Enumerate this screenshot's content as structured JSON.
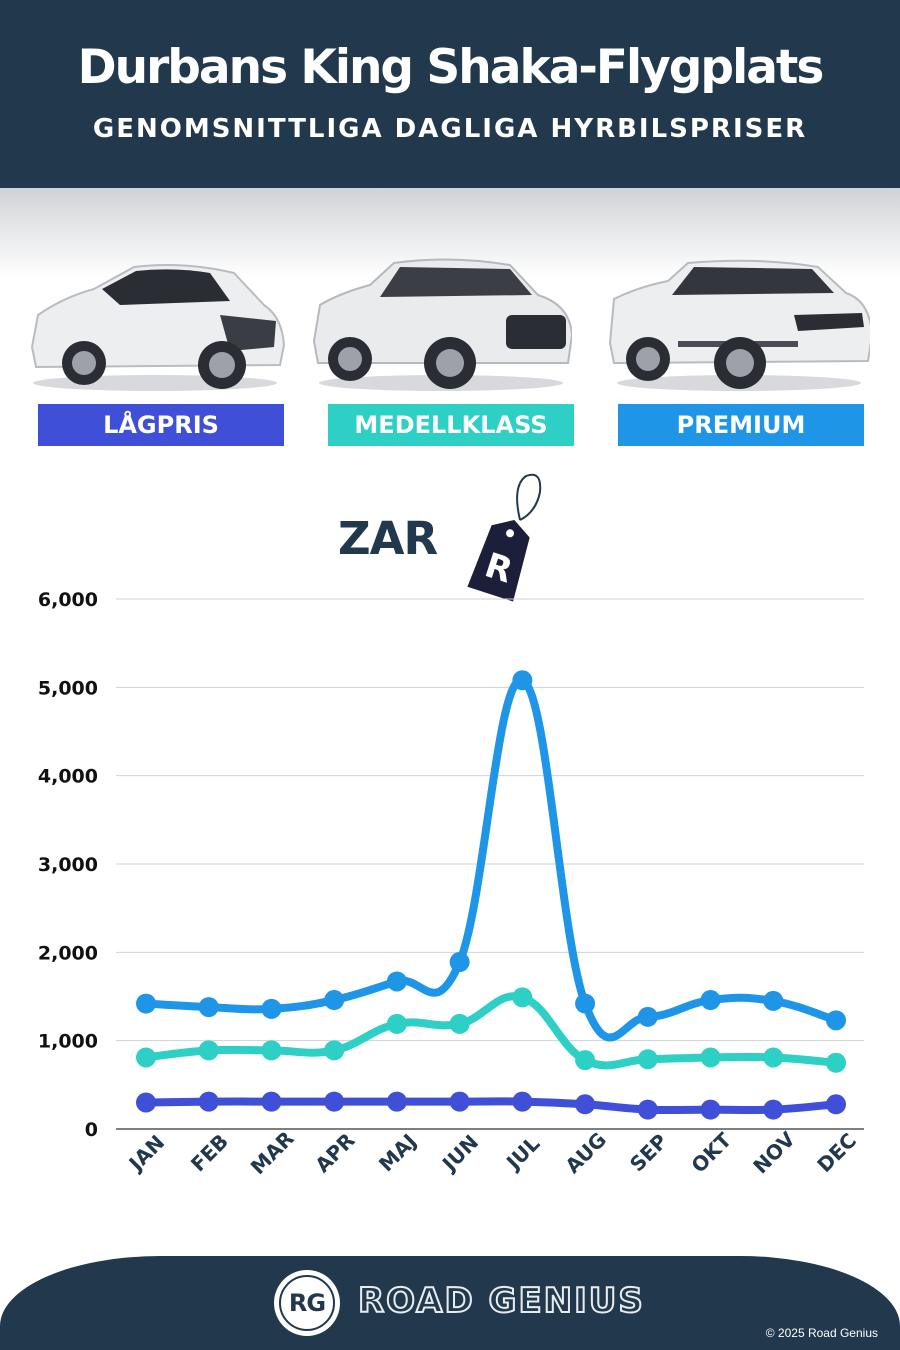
{
  "header": {
    "title": "Durbans King Shaka-Flygplats",
    "subtitle": "GENOMSNITTLIGA DAGLIGA HYRBILSPRISER"
  },
  "categories_badges": [
    {
      "label": "LÅGPRIS",
      "color": "#3f4fd8"
    },
    {
      "label": "MEDELLKLASS",
      "color": "#2ecfc5"
    },
    {
      "label": "PREMIUM",
      "color": "#1f95e8"
    }
  ],
  "currency": {
    "label": "ZAR",
    "tag_symbol": "R"
  },
  "chart_data": {
    "type": "line",
    "categories": [
      "JAN",
      "FEB",
      "MAR",
      "APR",
      "MAJ",
      "JUN",
      "JUL",
      "AUG",
      "SEP",
      "OKT",
      "NOV",
      "DEC"
    ],
    "series": [
      {
        "name": "PREMIUM",
        "color": "#1f95e8",
        "values": [
          1420,
          1380,
          1360,
          1460,
          1670,
          1890,
          5080,
          1420,
          1270,
          1460,
          1450,
          1230
        ]
      },
      {
        "name": "MEDELLKLASS",
        "color": "#2ecfc5",
        "values": [
          810,
          890,
          890,
          890,
          1190,
          1190,
          1490,
          780,
          790,
          810,
          810,
          750
        ]
      },
      {
        "name": "LÅGPRIS",
        "color": "#3f4fd8",
        "values": [
          300,
          310,
          310,
          310,
          310,
          310,
          310,
          280,
          220,
          220,
          220,
          280
        ]
      }
    ],
    "yticks": [
      "0",
      "1,000",
      "2,000",
      "3,000",
      "4,000",
      "5,000",
      "6,000"
    ],
    "ylim": [
      0,
      6000
    ],
    "grid": true
  },
  "footer": {
    "logo_initials": "RG",
    "brand": "ROAD GENIUS",
    "copyright": "© 2025 Road Genius"
  }
}
